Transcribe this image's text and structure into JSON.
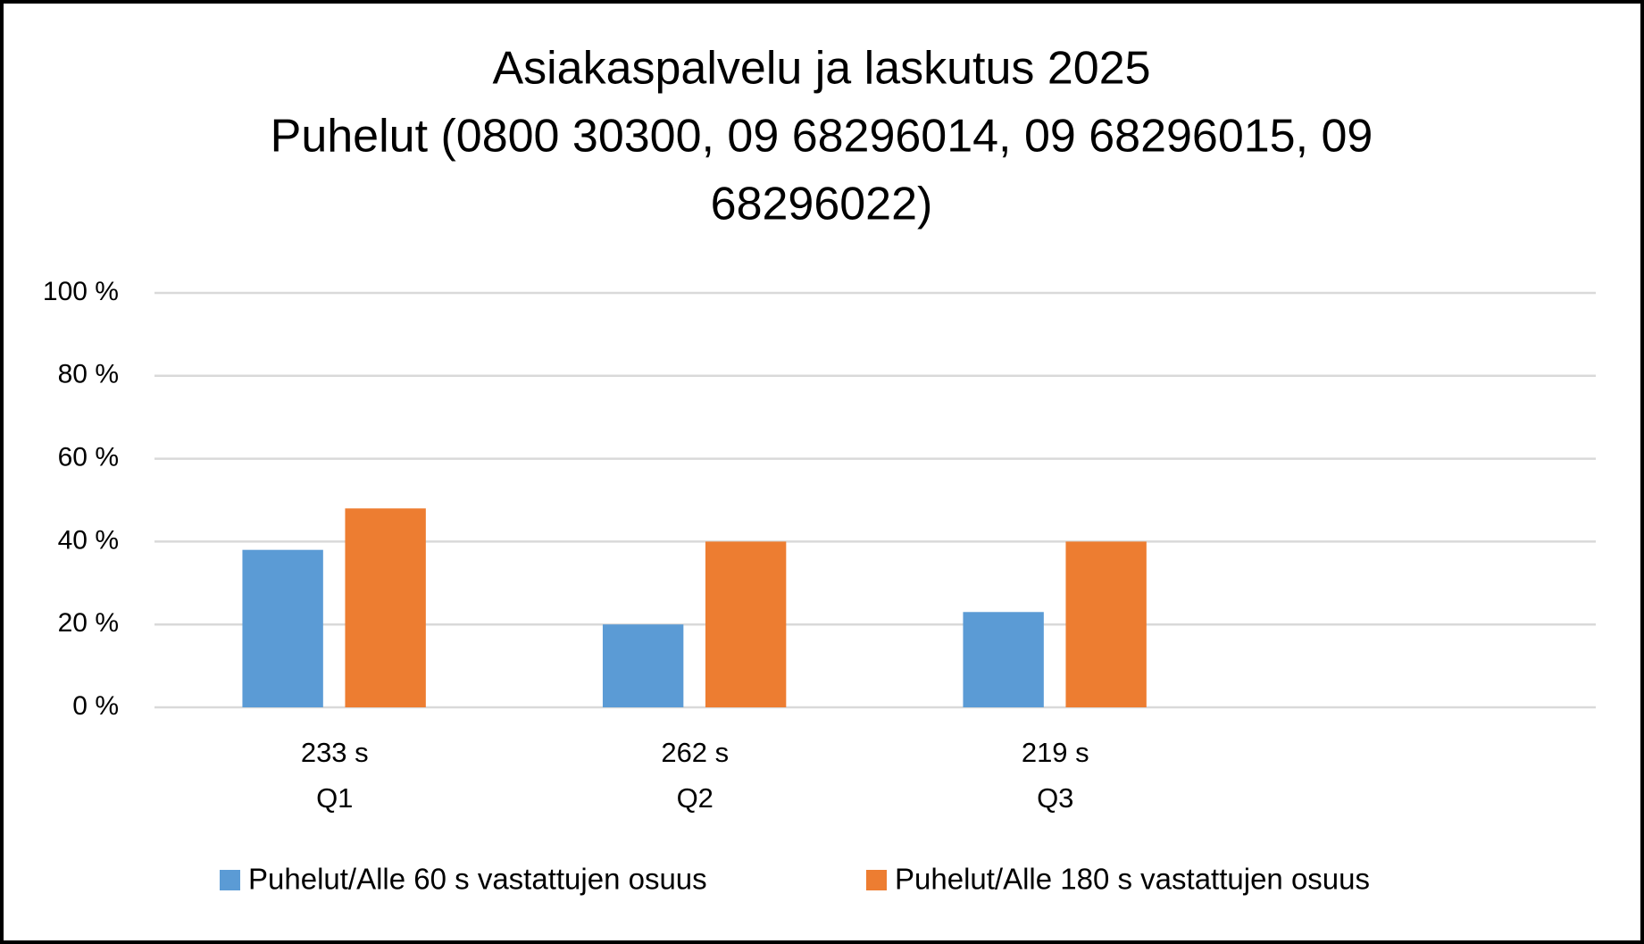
{
  "chart_data": {
    "type": "bar",
    "title": [
      "Asiakaspalvelu ja laskutus 2025",
      "Puhelut (0800 30300, 09 68296014, 09 68296015, 09",
      "68296022)"
    ],
    "categories": [
      [
        "233 s",
        "Q1"
      ],
      [
        "262 s",
        "Q2"
      ],
      [
        "219 s",
        "Q3"
      ],
      null
    ],
    "series": [
      {
        "name": "Puhelut/Alle 60 s vastattujen osuus",
        "color": "#5b9bd5",
        "values": [
          38,
          20,
          23,
          null
        ]
      },
      {
        "name": "Puhelut/Alle 180 s vastattujen osuus",
        "color": "#ed7d31",
        "values": [
          48,
          40,
          40,
          null
        ]
      }
    ],
    "ylim": [
      0,
      100
    ],
    "yticks": [
      {
        "value": 0,
        "label": "0 %"
      },
      {
        "value": 20,
        "label": "20 %"
      },
      {
        "value": 40,
        "label": "40 %"
      },
      {
        "value": 60,
        "label": "60 %"
      },
      {
        "value": 80,
        "label": "80 %"
      },
      {
        "value": 100,
        "label": "100 %"
      }
    ],
    "grid": true,
    "legend": "bottom"
  }
}
